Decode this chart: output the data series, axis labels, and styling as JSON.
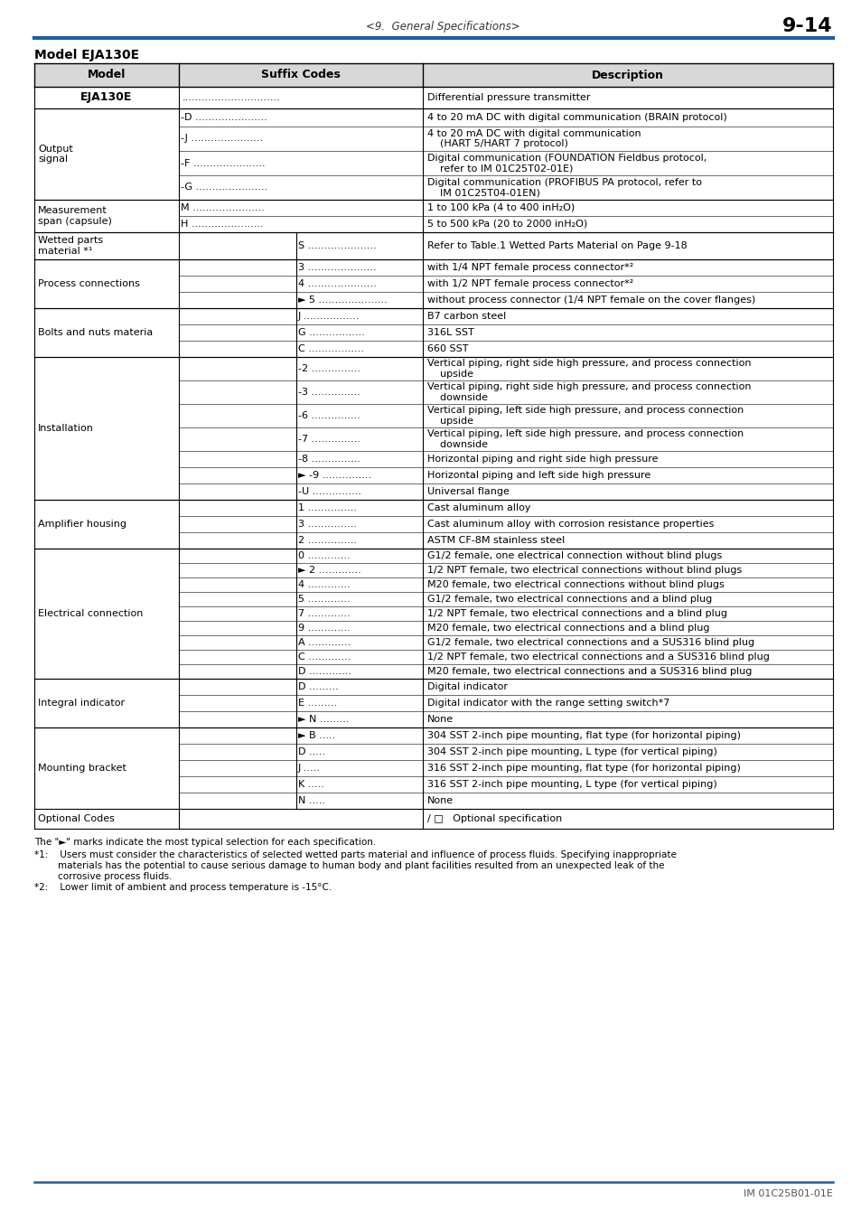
{
  "page_header_center": "<9.  General Specifications>",
  "page_header_right": "9-14",
  "model_title": "Model EJA130E",
  "header_line_color": "#1e5fa0",
  "footer_text": "IM 01C25B01-01E",
  "footnotes": [
    "The \"►\" marks indicate the most typical selection for each specification.",
    "*1:    Users must consider the characteristics of selected wetted parts material and influence of process fluids. Specifying inappropriate",
    "        materials has the potential to cause serious damage to human body and plant facilities resulted from an unexpected leak of the",
    "        corrosive process fluids.",
    "*2:    Lower limit of ambient and process temperature is -15°C."
  ]
}
